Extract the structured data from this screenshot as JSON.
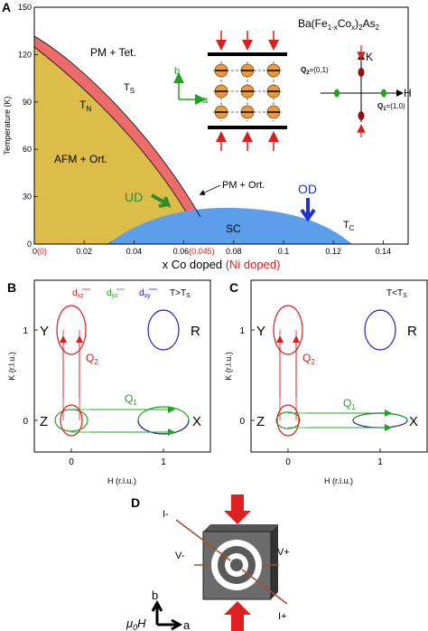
{
  "panelA": {
    "letter": "A",
    "compound": "Ba(Fe1-xCox)2As2",
    "ylabel": "Temperature (K)",
    "xlabel_main": "x Co doped",
    "xlabel_alt": "(Ni doped)",
    "xticks": [
      {
        "value": 0,
        "label": "0",
        "alt": "(0)"
      },
      {
        "value": 0.02,
        "label": "0.02"
      },
      {
        "value": 0.04,
        "label": "0.04"
      },
      {
        "value": 0.06,
        "label": "0.06",
        "alt": "(0.045)"
      },
      {
        "value": 0.08,
        "label": "0.08"
      },
      {
        "value": 0.1,
        "label": "0.1"
      },
      {
        "value": 0.12,
        "label": "0.12"
      },
      {
        "value": 0.14,
        "label": "0.14"
      }
    ],
    "yticks": [
      0,
      30,
      60,
      90,
      120,
      150
    ],
    "xlim": [
      0,
      0.15
    ],
    "ylim": [
      0,
      150
    ],
    "regions": {
      "pm_tet": "PM + Tet.",
      "ts": "T",
      "ts_sub": "S",
      "tn": "T",
      "tn_sub": "N",
      "afm_ort": "AFM + Ort.",
      "pm_ort": "PM + Ort.",
      "ud": "UD",
      "od": "OD",
      "sc": "SC",
      "tc": "T",
      "tc_sub": "C"
    },
    "inset": {
      "b": "b",
      "a": "a",
      "K": "K",
      "H": "H",
      "Q2": "Q",
      "Q2_sub": "2",
      "Q2_val": "=(0,1)",
      "Q1": "Q",
      "Q1_sub": "1",
      "Q1_val": "=(1,0)"
    },
    "colors": {
      "afm": "#dcbd4a",
      "ts_band": "#ee6b6b",
      "sc": "#5c9eea",
      "ud_arrow": "#2e8b2e",
      "od_arrow": "#1f2fd6",
      "alt_red": "#d42020"
    }
  },
  "panelB": {
    "letter": "B",
    "temp_label": "T>T",
    "temp_sub": "S",
    "ylabel": "K (r.l.u.)",
    "xlabel": "H    (r.l.u.)",
    "xticks": [
      "0",
      "1"
    ],
    "yticks": [
      "0",
      "1"
    ],
    "points": {
      "Y": "Y",
      "R": "R",
      "Z": "Z",
      "X": "X"
    },
    "orbitals": [
      {
        "name": "d",
        "sub": "xz",
        "color": "#d42020"
      },
      {
        "name": "d",
        "sub": "yz",
        "color": "#22a022"
      },
      {
        "name": "d",
        "sub": "xy",
        "color": "#2020c0"
      }
    ],
    "q1": "Q",
    "q1_sub": "1",
    "q2": "Q",
    "q2_sub": "2"
  },
  "panelC": {
    "letter": "C",
    "temp_label": "T<T",
    "temp_sub": "S",
    "ylabel": "K (r.l.u.)",
    "xlabel": "H    (r.l.u.)",
    "xticks": [
      "0",
      "1"
    ],
    "yticks": [
      "0",
      "1"
    ],
    "points": {
      "Y": "Y",
      "R": "R",
      "Z": "Z",
      "X": "X"
    },
    "q1": "Q",
    "q1_sub": "1",
    "q2": "Q",
    "q2_sub": "2"
  },
  "panelD": {
    "letter": "D",
    "i_minus": "I-",
    "i_plus": "I+",
    "v_minus": "V-",
    "v_plus": "V+",
    "b": "b",
    "a": "a",
    "field": "μ",
    "field_sub": "0",
    "field_h": "H"
  }
}
